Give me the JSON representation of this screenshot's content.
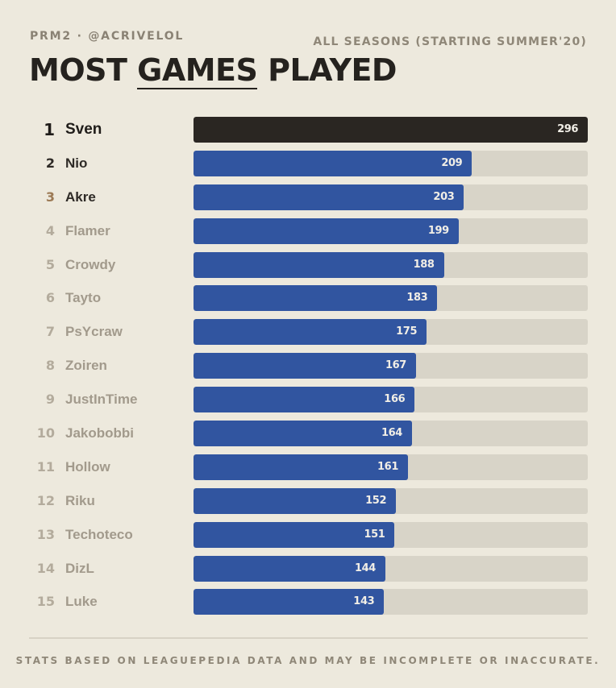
{
  "header": {
    "kicker": "PRM2 · @ACRIVELOL",
    "title_pre": "MOST ",
    "title_highlight": "GAMES",
    "title_post": " PLAYED",
    "scope": "ALL SEASONS (STARTING SUMMER'20)"
  },
  "footer": {
    "note": "STATS BASED ON LEAGUEPEDIA DATA AND MAY BE INCOMPLETE OR INACCURATE."
  },
  "colors": {
    "background": "#ede9dd",
    "track": "#d8d4c8",
    "bar": "#3155a0",
    "leader_bar": "#2a2622",
    "rank3": "#9c7a55"
  },
  "chart_data": {
    "type": "bar",
    "orientation": "horizontal",
    "title": "MOST GAMES PLAYED",
    "subtitle": "ALL SEASONS (STARTING SUMMER'20)",
    "xlim": [
      0,
      296
    ],
    "categories": [
      "Sven",
      "Nio",
      "Akre",
      "Flamer",
      "Crowdy",
      "Tayto",
      "PsYcraw",
      "Zoiren",
      "JustInTime",
      "Jakobobbi",
      "Hollow",
      "Riku",
      "Techoteco",
      "DizL",
      "Luke"
    ],
    "ranks": [
      "1",
      "2",
      "3",
      "4",
      "5",
      "6",
      "7",
      "8",
      "9",
      "10",
      "11",
      "12",
      "13",
      "14",
      "15"
    ],
    "values": [
      296,
      209,
      203,
      199,
      188,
      183,
      175,
      167,
      166,
      164,
      161,
      152,
      151,
      144,
      143
    ]
  }
}
